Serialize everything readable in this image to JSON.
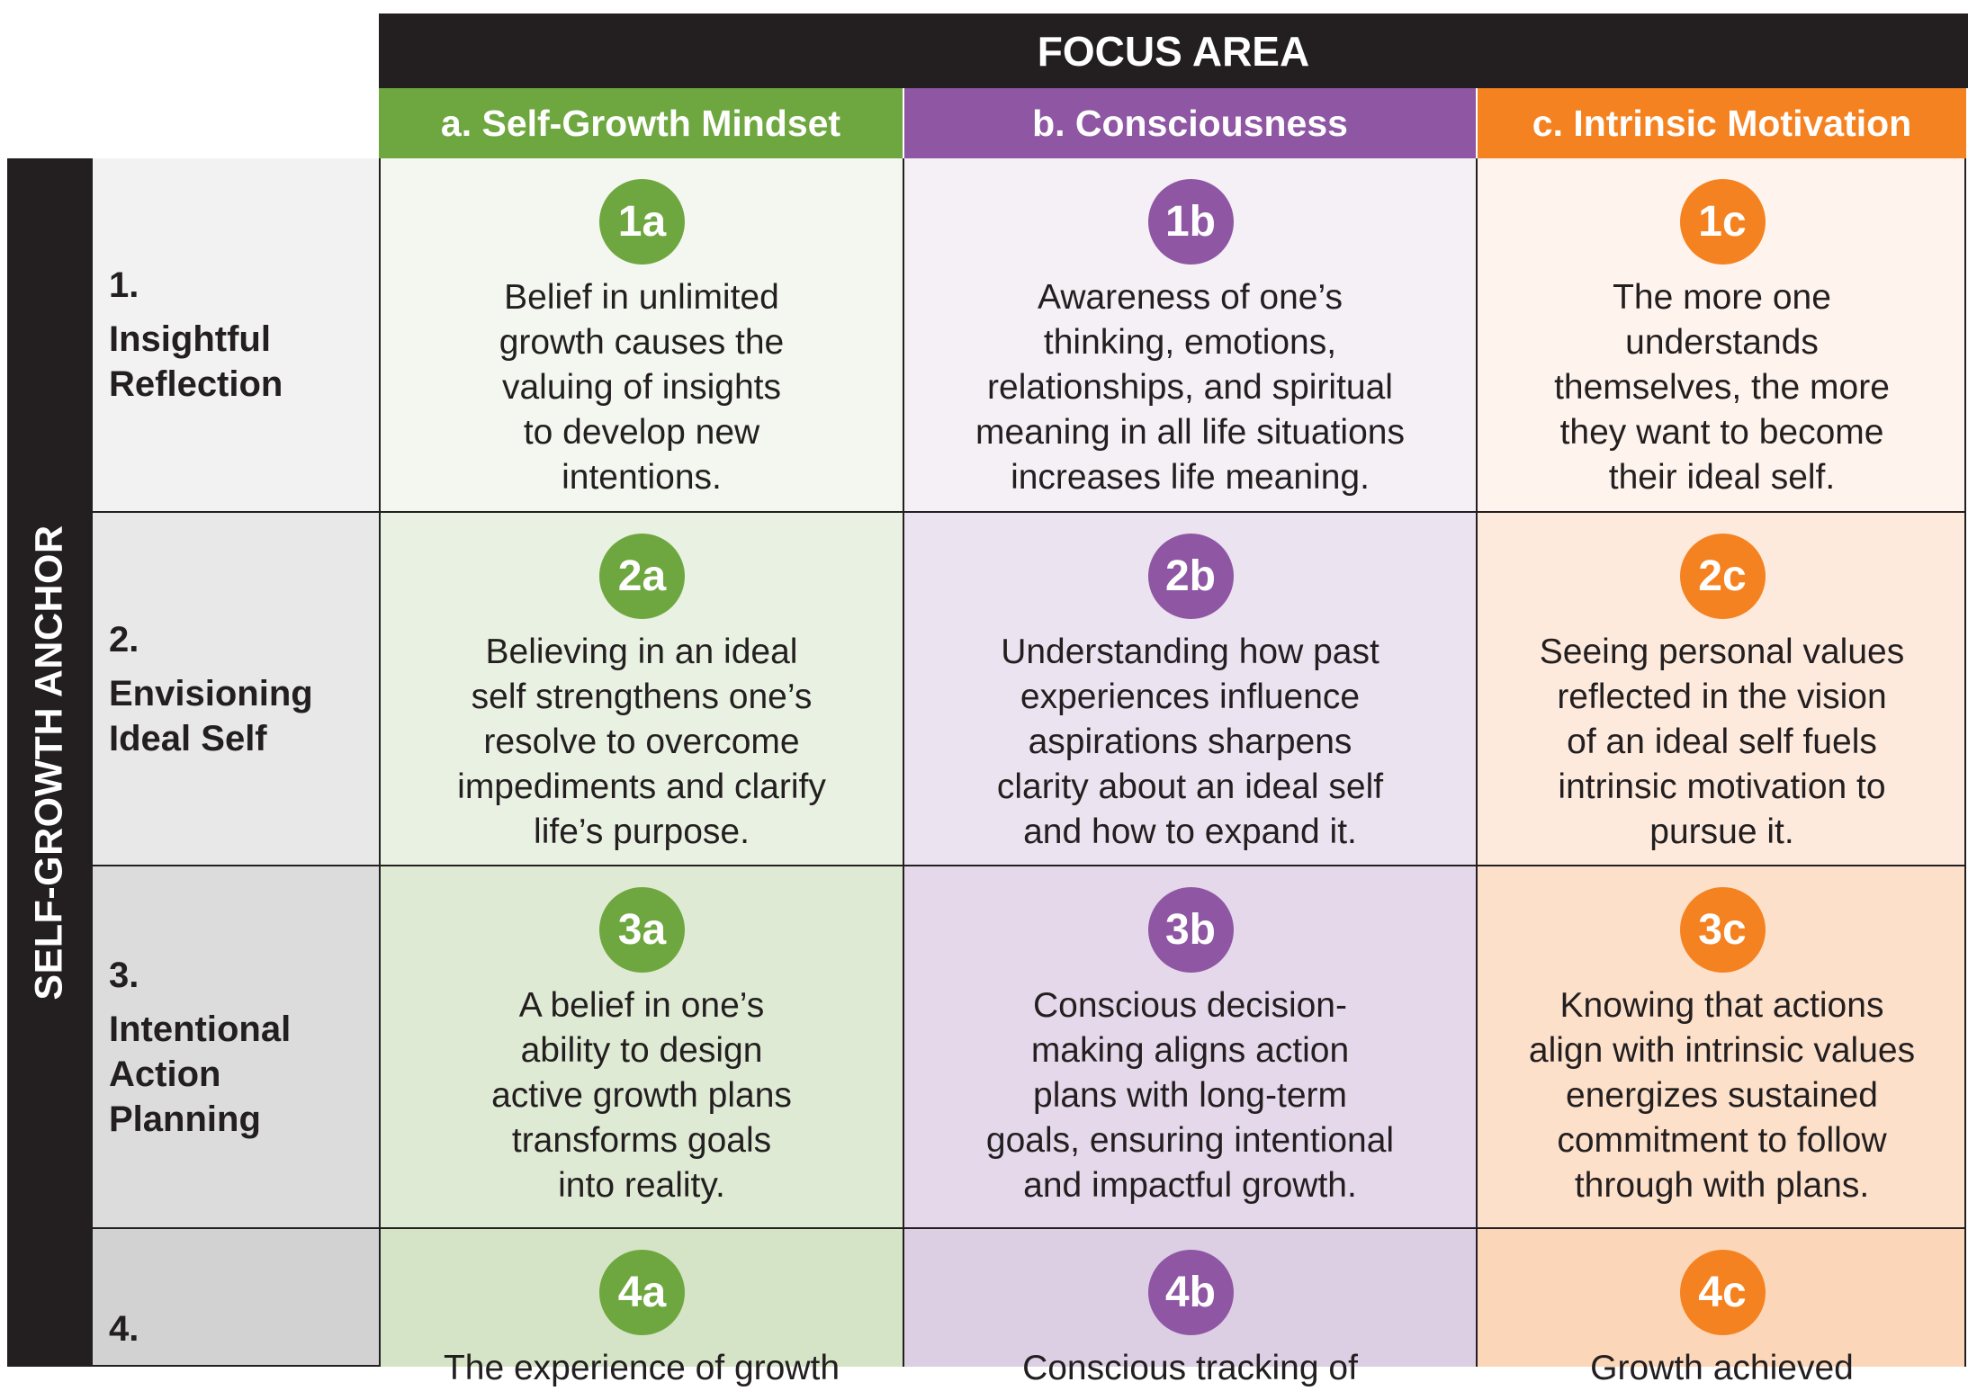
{
  "header": {
    "title": "FOCUS AREA"
  },
  "anchor_label": "SELF-GROWTH ANCHOR",
  "colors": {
    "dark": "#231f20",
    "green": "#6ea73f",
    "purple": "#8f56a3",
    "orange": "#f58220"
  },
  "columns": [
    {
      "label": "a. Self-Growth Mindset",
      "color": "#6ea73f"
    },
    {
      "label": "b. Consciousness",
      "color": "#8f56a3"
    },
    {
      "label": "c. Intrinsic Motivation",
      "color": "#f58220"
    }
  ],
  "rows": [
    {
      "number": "1.",
      "title": "Insightful\nReflection",
      "cells": [
        {
          "badge": "1a",
          "text": "Belief in unlimited\ngrowth causes the\nvaluing of insights\nto develop new\nintentions."
        },
        {
          "badge": "1b",
          "text": "Awareness of one’s\nthinking, emotions,\nrelationships, and spiritual\nmeaning in all life situations\nincreases life meaning."
        },
        {
          "badge": "1c",
          "text": "The more one\nunderstands\nthemselves, the more\nthey want to become\ntheir ideal self."
        }
      ]
    },
    {
      "number": "2.",
      "title": "Envisioning\nIdeal Self",
      "cells": [
        {
          "badge": "2a",
          "text": "Believing in an ideal\nself strengthens one’s\nresolve to overcome\nimpediments and clarify\nlife’s purpose."
        },
        {
          "badge": "2b",
          "text": "Understanding how past\nexperiences influence\naspirations sharpens\nclarity about an ideal self\nand how to expand it."
        },
        {
          "badge": "2c",
          "text": "Seeing personal values\nreflected in the vision\nof an ideal self fuels\nintrinsic motivation to\npursue it."
        }
      ]
    },
    {
      "number": "3.",
      "title": "Intentional\nAction\nPlanning",
      "cells": [
        {
          "badge": "3a",
          "text": "A belief in one’s\nability to design\nactive growth plans\ntransforms goals\ninto reality."
        },
        {
          "badge": "3b",
          "text": "Conscious decision-\nmaking aligns action\nplans with long-term\ngoals, ensuring intentional\nand impactful growth."
        },
        {
          "badge": "3c",
          "text": "Knowing that actions\nalign with intrinsic values\nenergizes sustained\ncommitment to follow\nthrough with plans."
        }
      ]
    },
    {
      "number": "4.",
      "title": "",
      "cells": [
        {
          "badge": "4a",
          "text": "The experience of growth"
        },
        {
          "badge": "4b",
          "text": "Conscious tracking of"
        },
        {
          "badge": "4c",
          "text": "Growth achieved"
        }
      ]
    }
  ]
}
